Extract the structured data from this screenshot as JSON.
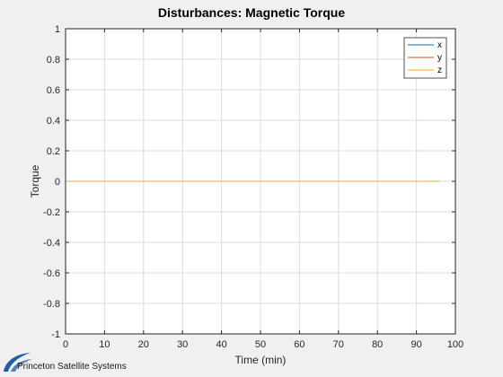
{
  "brand": {
    "name": "Princeton Satellite Systems",
    "logo_color": "#1f5fa8"
  },
  "chart_data": {
    "type": "line",
    "title": "Disturbances: Magnetic Torque",
    "xlabel": "Time (min)",
    "ylabel": "Torque",
    "xlim": [
      0,
      100
    ],
    "ylim": [
      -1,
      1
    ],
    "xticks": [
      0,
      10,
      20,
      30,
      40,
      50,
      60,
      70,
      80,
      90,
      100
    ],
    "yticks": [
      -1,
      -0.8,
      -0.6,
      -0.4,
      -0.2,
      0,
      0.2,
      0.4,
      0.6,
      0.8,
      1
    ],
    "xtick_labels": [
      "0",
      "10",
      "20",
      "30",
      "40",
      "50",
      "60",
      "70",
      "80",
      "90",
      "100"
    ],
    "ytick_labels": [
      "-1",
      "-0.8",
      "-0.6",
      "-0.4",
      "-0.2",
      "0",
      "0.2",
      "0.4",
      "0.6",
      "0.8",
      "1"
    ],
    "grid": true,
    "legend_position": "top-right",
    "series": [
      {
        "name": "x",
        "color": "#0072bd",
        "x": [
          0,
          96
        ],
        "y": [
          0,
          0
        ]
      },
      {
        "name": "y",
        "color": "#d95319",
        "x": [
          0,
          96
        ],
        "y": [
          0,
          0
        ]
      },
      {
        "name": "z",
        "color": "#edb120",
        "x": [
          0,
          96
        ],
        "y": [
          0,
          0
        ]
      }
    ]
  }
}
